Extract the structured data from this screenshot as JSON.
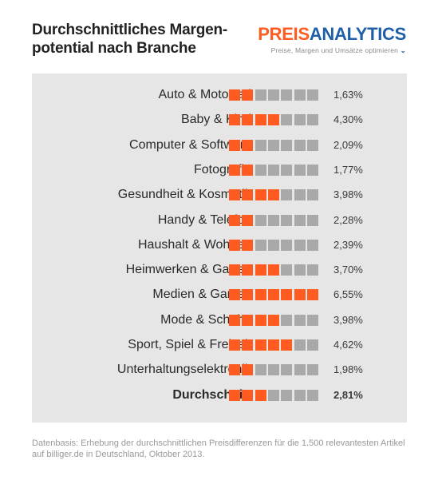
{
  "header": {
    "title_line1": "Durchschnittliches Margen-",
    "title_line2": "potential nach Branche"
  },
  "brand": {
    "name_part1": "PREIS",
    "name_part2": "ANALYTICS",
    "tagline": "Preise, Margen und Umsätze optimieren",
    "tagline_icon": "chevron-down-icon",
    "colors": {
      "orange": "#ff5a1f",
      "blue": "#1f5fa8"
    }
  },
  "chart_data": {
    "type": "bar",
    "title": "Durchschnittliches Margenpotential nach Branche",
    "categories": [
      "Auto & Motorrad",
      "Baby & Kind",
      "Computer & Software",
      "Fotografie",
      "Gesundheit & Kosmetik",
      "Handy & Telefon",
      "Haushalt & Wohnen",
      "Heimwerken & Garten",
      "Medien & Games",
      "Mode & Schuhe",
      "Sport, Spiel & Freizeit",
      "Unterhaltungselektronik",
      "Durchschnitt"
    ],
    "values": [
      1.63,
      4.3,
      2.09,
      1.77,
      3.98,
      2.28,
      2.39,
      3.7,
      6.55,
      3.98,
      4.62,
      1.98,
      2.81
    ],
    "value_labels": [
      "1,63%",
      "4,30%",
      "2,09%",
      "1,77%",
      "3,98%",
      "2,28%",
      "2,39%",
      "3,70%",
      "6,55%",
      "3,98%",
      "4,62%",
      "1,98%",
      "2,81%"
    ],
    "filled_squares": [
      2,
      4,
      2,
      2,
      4,
      2,
      2,
      4,
      7,
      4,
      5,
      2,
      3
    ],
    "total_squares": 7,
    "highlighted_category": "Durchschnitt",
    "colors": {
      "filled": "#ff5a1f",
      "empty": "#a9a9a9",
      "panel": "#e6e6e6"
    }
  },
  "footnote": {
    "line1": "Datenbasis: Erhebung der durchschnittlichen Preisdifferenzen für die 1.500 relevantesten Artikel",
    "line2": "auf billiger.de in Deutschland, Oktober 2013."
  }
}
